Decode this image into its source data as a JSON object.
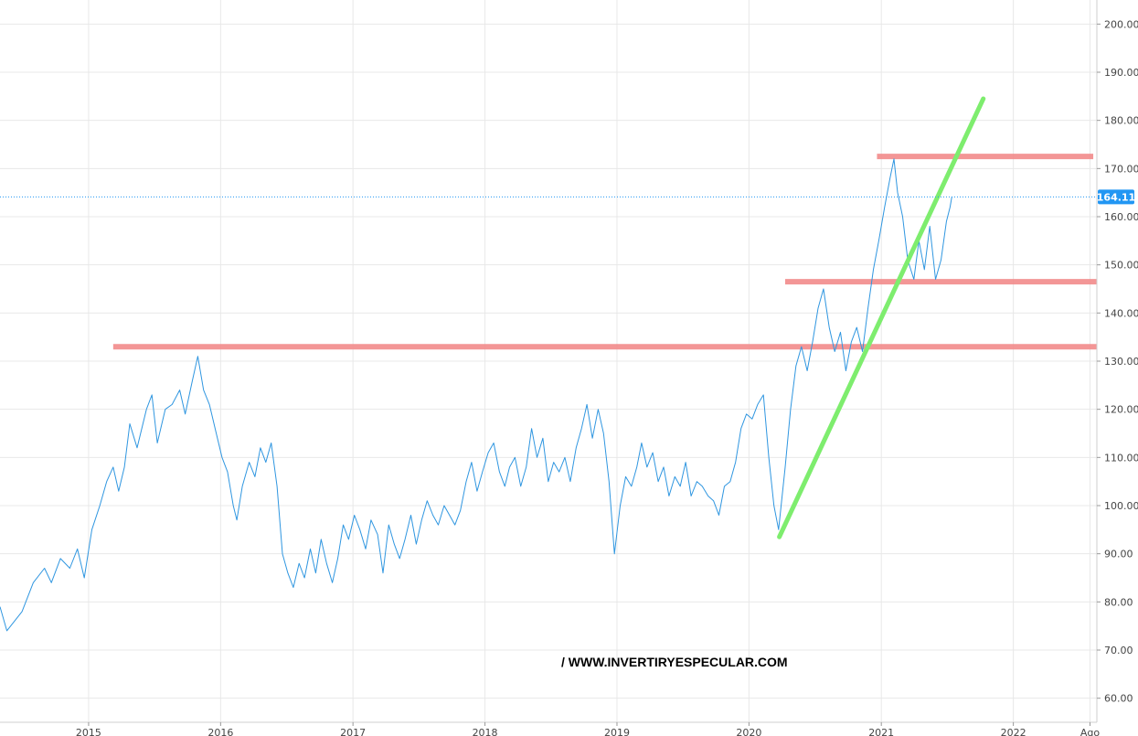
{
  "chart_data": {
    "type": "line",
    "title": "",
    "xlabel": "",
    "ylabel": "",
    "ylim": [
      55,
      205
    ],
    "xlim": [
      "2014-05-01",
      "2022-08-20"
    ],
    "y_ticks": [
      "60.00",
      "70.00",
      "80.00",
      "90.00",
      "100.00",
      "110.00",
      "120.00",
      "130.00",
      "140.00",
      "150.00",
      "160.00",
      "170.00",
      "180.00",
      "190.00",
      "200.00"
    ],
    "x_ticks": [
      {
        "label": "2015",
        "date": "2015-01-01"
      },
      {
        "label": "2016",
        "date": "2016-01-01"
      },
      {
        "label": "2017",
        "date": "2017-01-01"
      },
      {
        "label": "2018",
        "date": "2018-01-01"
      },
      {
        "label": "2019",
        "date": "2019-01-01"
      },
      {
        "label": "2020",
        "date": "2020-01-01"
      },
      {
        "label": "2021",
        "date": "2021-01-01"
      },
      {
        "label": "2022",
        "date": "2022-01-01"
      },
      {
        "label": "Ago",
        "date": "2022-08-01"
      }
    ],
    "grid": true,
    "last_price": 164.11,
    "last_price_label": "164.11",
    "colors": {
      "price_line": "#2f96e0",
      "last_price": "#2196f3",
      "resistance": "#f28b8b",
      "trendline": "#7eed6e",
      "grid": "#e8e8e8"
    },
    "series": [
      {
        "points": [
          [
            "2014-05-01",
            79
          ],
          [
            "2014-05-20",
            74
          ],
          [
            "2014-06-10",
            76
          ],
          [
            "2014-07-01",
            78
          ],
          [
            "2014-08-01",
            84
          ],
          [
            "2014-09-01",
            87
          ],
          [
            "2014-09-20",
            84
          ],
          [
            "2014-10-15",
            89
          ],
          [
            "2014-11-10",
            87
          ],
          [
            "2014-12-01",
            91
          ],
          [
            "2014-12-20",
            85
          ],
          [
            "2015-01-10",
            95
          ],
          [
            "2015-02-01",
            100
          ],
          [
            "2015-02-20",
            105
          ],
          [
            "2015-03-10",
            108
          ],
          [
            "2015-03-25",
            103
          ],
          [
            "2015-04-10",
            108
          ],
          [
            "2015-04-25",
            117
          ],
          [
            "2015-05-15",
            112
          ],
          [
            "2015-06-10",
            120
          ],
          [
            "2015-06-25",
            123
          ],
          [
            "2015-07-10",
            113
          ],
          [
            "2015-08-01",
            120
          ],
          [
            "2015-08-20",
            121
          ],
          [
            "2015-09-10",
            124
          ],
          [
            "2015-09-25",
            119
          ],
          [
            "2015-10-15",
            126
          ],
          [
            "2015-10-30",
            131
          ],
          [
            "2015-11-15",
            124
          ],
          [
            "2015-12-01",
            121
          ],
          [
            "2015-12-20",
            115
          ],
          [
            "2016-01-05",
            110
          ],
          [
            "2016-01-20",
            107
          ],
          [
            "2016-02-05",
            100
          ],
          [
            "2016-02-15",
            97
          ],
          [
            "2016-03-01",
            104
          ],
          [
            "2016-03-20",
            109
          ],
          [
            "2016-04-05",
            106
          ],
          [
            "2016-04-20",
            112
          ],
          [
            "2016-05-05",
            109
          ],
          [
            "2016-05-20",
            113
          ],
          [
            "2016-06-05",
            104
          ],
          [
            "2016-06-20",
            90
          ],
          [
            "2016-07-05",
            86
          ],
          [
            "2016-07-20",
            83
          ],
          [
            "2016-08-05",
            88
          ],
          [
            "2016-08-20",
            85
          ],
          [
            "2016-09-05",
            91
          ],
          [
            "2016-09-20",
            86
          ],
          [
            "2016-10-05",
            93
          ],
          [
            "2016-10-20",
            88
          ],
          [
            "2016-11-05",
            84
          ],
          [
            "2016-11-20",
            89
          ],
          [
            "2016-12-05",
            96
          ],
          [
            "2016-12-20",
            93
          ],
          [
            "2017-01-05",
            98
          ],
          [
            "2017-01-20",
            95
          ],
          [
            "2017-02-05",
            91
          ],
          [
            "2017-02-20",
            97
          ],
          [
            "2017-03-10",
            94
          ],
          [
            "2017-03-25",
            86
          ],
          [
            "2017-04-10",
            96
          ],
          [
            "2017-04-25",
            92
          ],
          [
            "2017-05-10",
            89
          ],
          [
            "2017-05-25",
            93
          ],
          [
            "2017-06-10",
            98
          ],
          [
            "2017-06-25",
            92
          ],
          [
            "2017-07-10",
            97
          ],
          [
            "2017-07-25",
            101
          ],
          [
            "2017-08-10",
            98
          ],
          [
            "2017-08-25",
            96
          ],
          [
            "2017-09-10",
            100
          ],
          [
            "2017-09-25",
            98
          ],
          [
            "2017-10-10",
            96
          ],
          [
            "2017-10-25",
            99
          ],
          [
            "2017-11-10",
            105
          ],
          [
            "2017-11-25",
            109
          ],
          [
            "2017-12-10",
            103
          ],
          [
            "2017-12-25",
            107
          ],
          [
            "2018-01-10",
            111
          ],
          [
            "2018-01-25",
            113
          ],
          [
            "2018-02-10",
            107
          ],
          [
            "2018-02-25",
            104
          ],
          [
            "2018-03-10",
            108
          ],
          [
            "2018-03-25",
            110
          ],
          [
            "2018-04-10",
            104
          ],
          [
            "2018-04-25",
            108
          ],
          [
            "2018-05-10",
            116
          ],
          [
            "2018-05-25",
            110
          ],
          [
            "2018-06-10",
            114
          ],
          [
            "2018-06-25",
            105
          ],
          [
            "2018-07-10",
            109
          ],
          [
            "2018-07-25",
            107
          ],
          [
            "2018-08-10",
            110
          ],
          [
            "2018-08-25",
            105
          ],
          [
            "2018-09-10",
            112
          ],
          [
            "2018-09-25",
            116
          ],
          [
            "2018-10-10",
            121
          ],
          [
            "2018-10-25",
            114
          ],
          [
            "2018-11-10",
            120
          ],
          [
            "2018-11-25",
            115
          ],
          [
            "2018-12-10",
            105
          ],
          [
            "2018-12-25",
            90
          ],
          [
            "2019-01-10",
            100
          ],
          [
            "2019-01-25",
            106
          ],
          [
            "2019-02-10",
            104
          ],
          [
            "2019-02-25",
            108
          ],
          [
            "2019-03-10",
            113
          ],
          [
            "2019-03-25",
            108
          ],
          [
            "2019-04-10",
            111
          ],
          [
            "2019-04-25",
            105
          ],
          [
            "2019-05-10",
            108
          ],
          [
            "2019-05-25",
            102
          ],
          [
            "2019-06-10",
            106
          ],
          [
            "2019-06-25",
            104
          ],
          [
            "2019-07-10",
            109
          ],
          [
            "2019-07-25",
            102
          ],
          [
            "2019-08-10",
            105
          ],
          [
            "2019-08-25",
            104
          ],
          [
            "2019-09-10",
            102
          ],
          [
            "2019-09-25",
            101
          ],
          [
            "2019-10-10",
            98
          ],
          [
            "2019-10-25",
            104
          ],
          [
            "2019-11-10",
            105
          ],
          [
            "2019-11-25",
            109
          ],
          [
            "2019-12-10",
            116
          ],
          [
            "2019-12-25",
            119
          ],
          [
            "2020-01-10",
            118
          ],
          [
            "2020-01-25",
            121
          ],
          [
            "2020-02-10",
            123
          ],
          [
            "2020-02-25",
            110
          ],
          [
            "2020-03-10",
            100
          ],
          [
            "2020-03-23",
            95
          ],
          [
            "2020-04-10",
            108
          ],
          [
            "2020-04-25",
            120
          ],
          [
            "2020-05-10",
            129
          ],
          [
            "2020-05-25",
            133
          ],
          [
            "2020-06-10",
            128
          ],
          [
            "2020-06-25",
            134
          ],
          [
            "2020-07-10",
            141
          ],
          [
            "2020-07-25",
            145
          ],
          [
            "2020-08-10",
            137
          ],
          [
            "2020-08-25",
            132
          ],
          [
            "2020-09-10",
            136
          ],
          [
            "2020-09-25",
            128
          ],
          [
            "2020-10-10",
            134
          ],
          [
            "2020-10-25",
            137
          ],
          [
            "2020-11-10",
            132
          ],
          [
            "2020-11-25",
            141
          ],
          [
            "2020-12-10",
            149
          ],
          [
            "2020-12-25",
            155
          ],
          [
            "2021-01-10",
            162
          ],
          [
            "2021-01-25",
            168
          ],
          [
            "2021-02-05",
            172
          ],
          [
            "2021-02-15",
            165
          ],
          [
            "2021-03-01",
            160
          ],
          [
            "2021-03-15",
            151
          ],
          [
            "2021-04-01",
            147
          ],
          [
            "2021-04-15",
            155
          ],
          [
            "2021-04-30",
            149
          ],
          [
            "2021-05-15",
            158
          ],
          [
            "2021-05-31",
            147
          ],
          [
            "2021-06-15",
            151
          ],
          [
            "2021-06-30",
            159
          ],
          [
            "2021-07-10",
            162
          ],
          [
            "2021-07-15",
            164.11
          ]
        ]
      }
    ],
    "horizontal_lines": [
      {
        "y": 133,
        "x_start": "2015-03-10",
        "x_end": "2022-08-20"
      },
      {
        "y": 146.5,
        "x_start": "2020-04-10",
        "x_end": "2022-08-20"
      },
      {
        "y": 172.5,
        "x_start": "2020-12-20",
        "x_end": "2022-08-10"
      }
    ],
    "trendline": {
      "start": [
        "2020-03-25",
        93.5
      ],
      "end": [
        "2021-10-10",
        184.5
      ]
    }
  },
  "watermark": "/ WWW.INVERTIRYESPECULAR.COM"
}
